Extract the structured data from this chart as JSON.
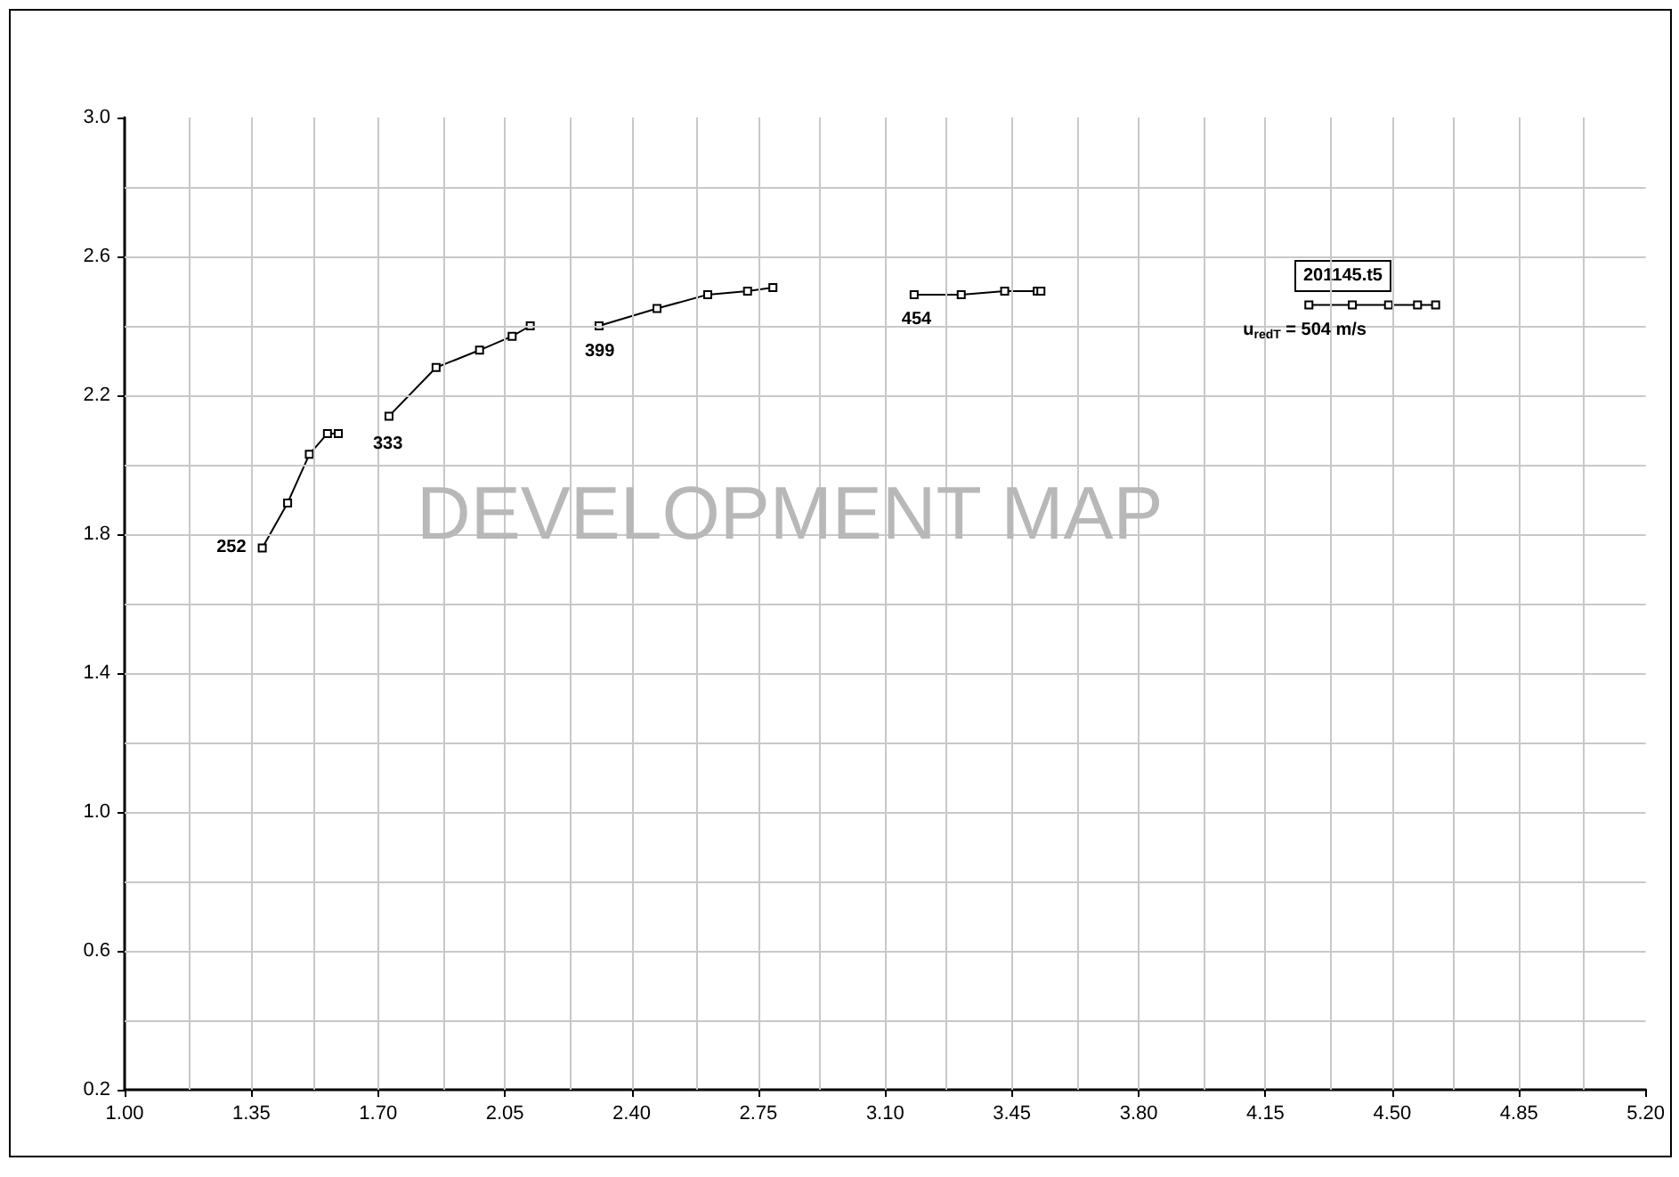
{
  "chart_data": {
    "type": "line",
    "marker": "square",
    "line_style": "solid",
    "grid": true,
    "legend": false,
    "xlim": [
      1.0,
      5.2
    ],
    "xticks": [
      {
        "value": 1.0,
        "label": "1.00"
      },
      {
        "value": 1.175,
        "label": null
      },
      {
        "value": 1.35,
        "label": "1.35"
      },
      {
        "value": 1.525,
        "label": null
      },
      {
        "value": 1.7,
        "label": "1.70"
      },
      {
        "value": 1.875,
        "label": null
      },
      {
        "value": 2.05,
        "label": "2.05"
      },
      {
        "value": 2.225,
        "label": null
      },
      {
        "value": 2.4,
        "label": "2.40"
      },
      {
        "value": 2.575,
        "label": null
      },
      {
        "value": 2.75,
        "label": "2.75"
      },
      {
        "value": 2.925,
        "label": null
      },
      {
        "value": 3.1,
        "label": "3.10"
      },
      {
        "value": 3.275,
        "label": null
      },
      {
        "value": 3.45,
        "label": "3.45"
      },
      {
        "value": 3.625,
        "label": null
      },
      {
        "value": 3.8,
        "label": "3.80"
      },
      {
        "value": 3.975,
        "label": null
      },
      {
        "value": 4.15,
        "label": "4.15"
      },
      {
        "value": 4.325,
        "label": null
      },
      {
        "value": 4.5,
        "label": "4.50"
      },
      {
        "value": 4.675,
        "label": null
      },
      {
        "value": 4.85,
        "label": "4.85"
      },
      {
        "value": 5.025,
        "label": null
      },
      {
        "value": 5.2,
        "label": "5.20"
      }
    ],
    "ylim": [
      0.2,
      3.0
    ],
    "yticks": [
      {
        "value": 0.2,
        "label": "0.2"
      },
      {
        "value": 0.4,
        "label": null
      },
      {
        "value": 0.6,
        "label": "0.6"
      },
      {
        "value": 0.8,
        "label": null
      },
      {
        "value": 1.0,
        "label": "1.0"
      },
      {
        "value": 1.2,
        "label": null
      },
      {
        "value": 1.4,
        "label": "1.4"
      },
      {
        "value": 1.6,
        "label": null
      },
      {
        "value": 1.8,
        "label": "1.8"
      },
      {
        "value": 2.0,
        "label": null
      },
      {
        "value": 2.2,
        "label": "2.2"
      },
      {
        "value": 2.4,
        "label": null
      },
      {
        "value": 2.6,
        "label": "2.6"
      },
      {
        "value": 2.8,
        "label": null
      },
      {
        "value": 3.0,
        "label": "3.0"
      }
    ],
    "series": [
      {
        "name": "252",
        "color": "#000000",
        "x": [
          1.38,
          1.45,
          1.51,
          1.56,
          1.59
        ],
        "values": [
          1.76,
          1.89,
          2.03,
          2.09,
          2.09
        ]
      },
      {
        "name": "333",
        "color": "#000000",
        "x": [
          1.73,
          1.86,
          1.98,
          2.07,
          2.12
        ],
        "values": [
          2.14,
          2.28,
          2.33,
          2.37,
          2.4
        ]
      },
      {
        "name": "399",
        "color": "#000000",
        "x": [
          2.31,
          2.47,
          2.61,
          2.72,
          2.79
        ],
        "values": [
          2.4,
          2.45,
          2.49,
          2.5,
          2.51
        ]
      },
      {
        "name": "454",
        "color": "#000000",
        "x": [
          3.18,
          3.31,
          3.43,
          3.52,
          3.53
        ],
        "values": [
          2.49,
          2.49,
          2.5,
          2.5,
          2.5
        ]
      },
      {
        "name": "u$_{redT}$ = 504 m/s",
        "color": "#000000",
        "x": [
          4.27,
          4.39,
          4.49,
          4.57,
          4.62
        ],
        "values": [
          2.46,
          2.46,
          2.46,
          2.46,
          2.46
        ]
      }
    ],
    "annotations": [
      "201145.t5",
      "DEVELOPMENT MAP"
    ]
  }
}
